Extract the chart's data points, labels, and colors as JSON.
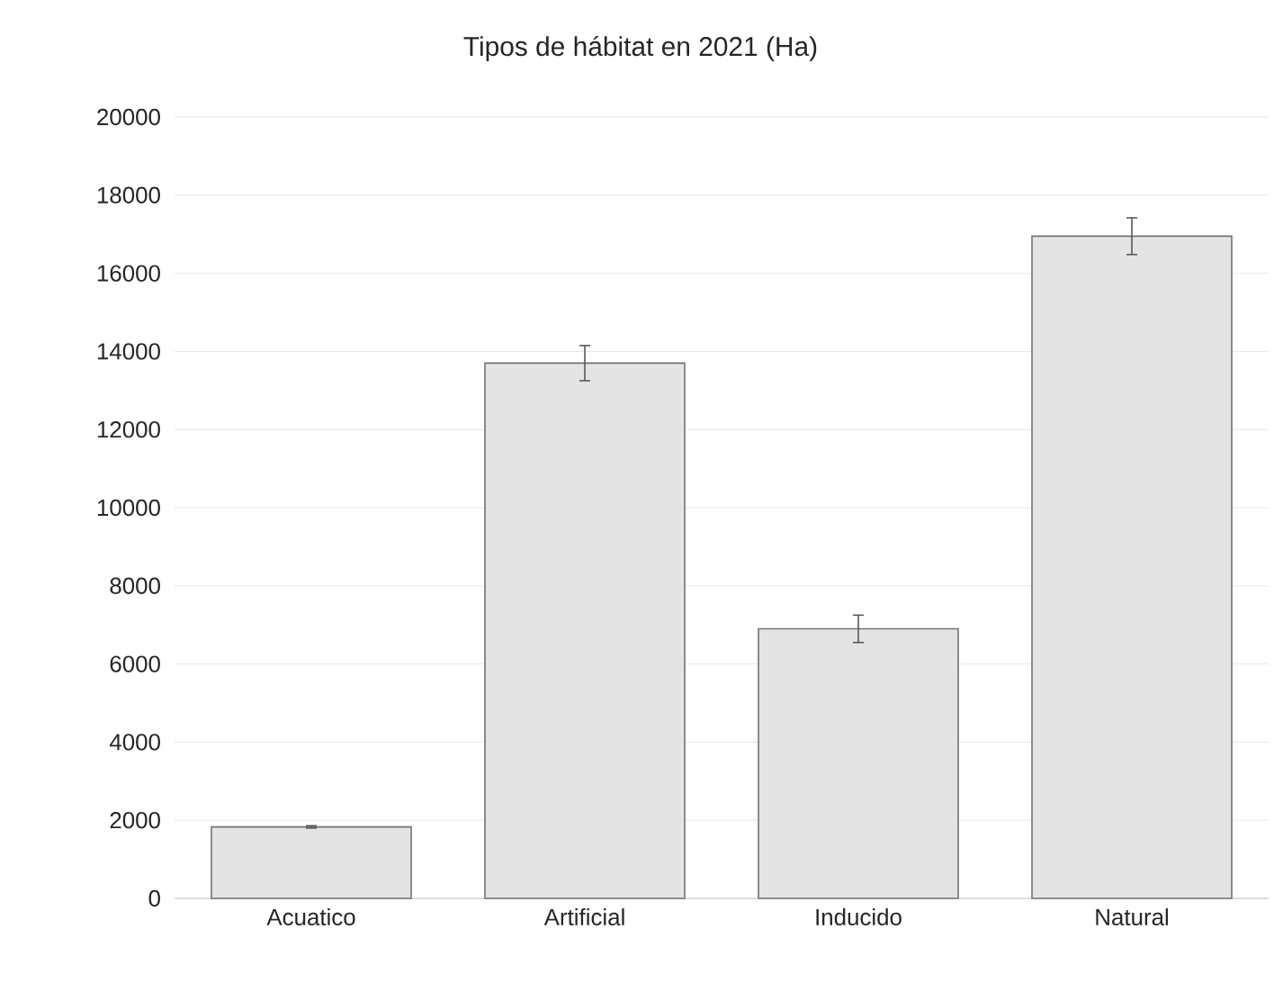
{
  "chart_data": {
    "type": "bar",
    "title": "Tipos de hábitat en 2021 (Ha)",
    "categories": [
      "Acuatico",
      "Artificial",
      "Inducido",
      "Natural"
    ],
    "values": [
      1830,
      13700,
      6900,
      16950
    ],
    "errors": [
      30,
      450,
      350,
      470
    ],
    "color": "#e4e4e4",
    "ylim": [
      0,
      20000
    ],
    "yticks": [
      0,
      2000,
      4000,
      6000,
      8000,
      10000,
      12000,
      14000,
      16000,
      18000,
      20000
    ],
    "grid": "y"
  }
}
